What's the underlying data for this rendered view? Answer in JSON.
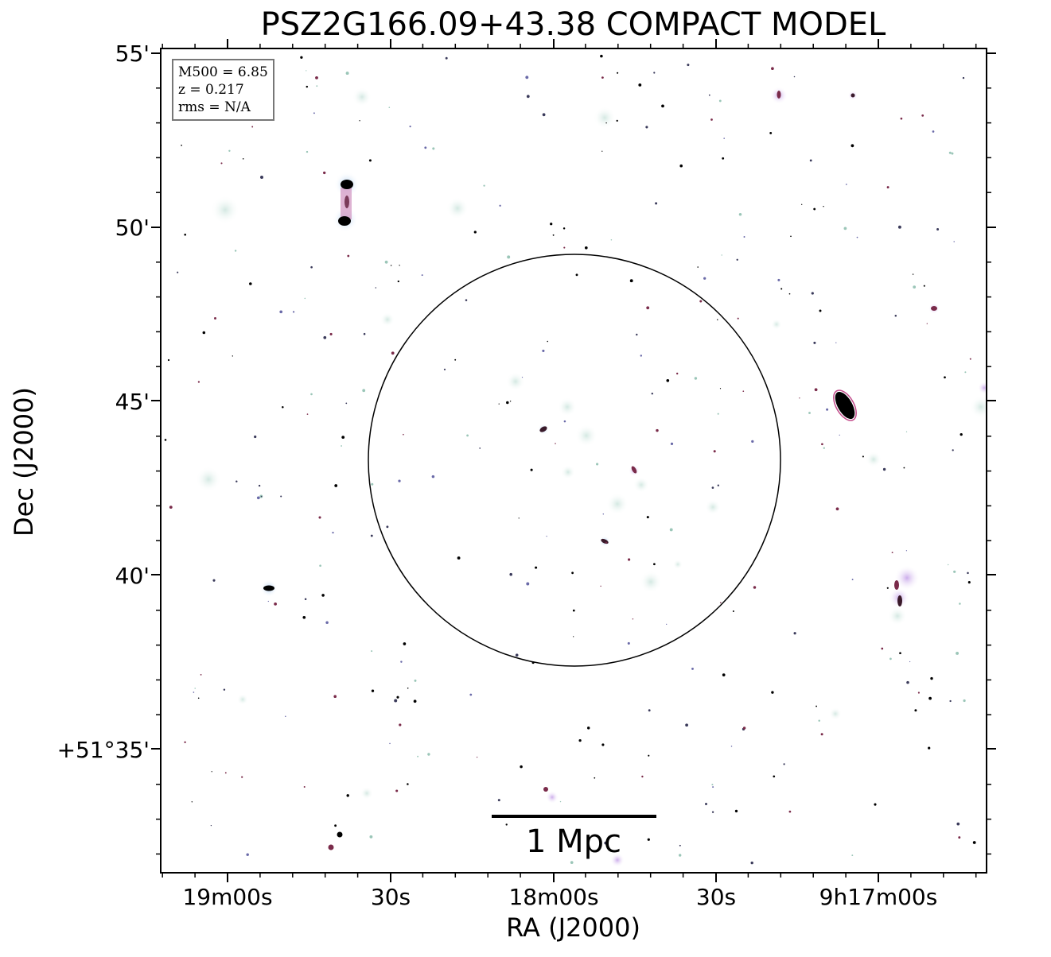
{
  "figure": {
    "title": "PSZ2G166.09+43.38 COMPACT MODEL",
    "xlabel": "RA (J2000)",
    "ylabel": "Dec (J2000)",
    "x_tick_labels": [
      "19m00s",
      "30s",
      "18m00s",
      "30s",
      "9h17m00s"
    ],
    "y_tick_labels": [
      "55'",
      "50'",
      "45'",
      "40'",
      "+51°35'"
    ],
    "info": {
      "mass_line": "M500 = 6.85",
      "redshift_line": "z = 0.217",
      "rms_line": "rms = N/A"
    },
    "scalebar_label": "1 Mpc",
    "colors": {
      "background": "#ffffff",
      "frame": "#000000",
      "halo": "#d9ece6",
      "source_core": "#000000",
      "source_magenta": "#c24a8a",
      "source_blue": "#8a8ad8"
    }
  }
}
